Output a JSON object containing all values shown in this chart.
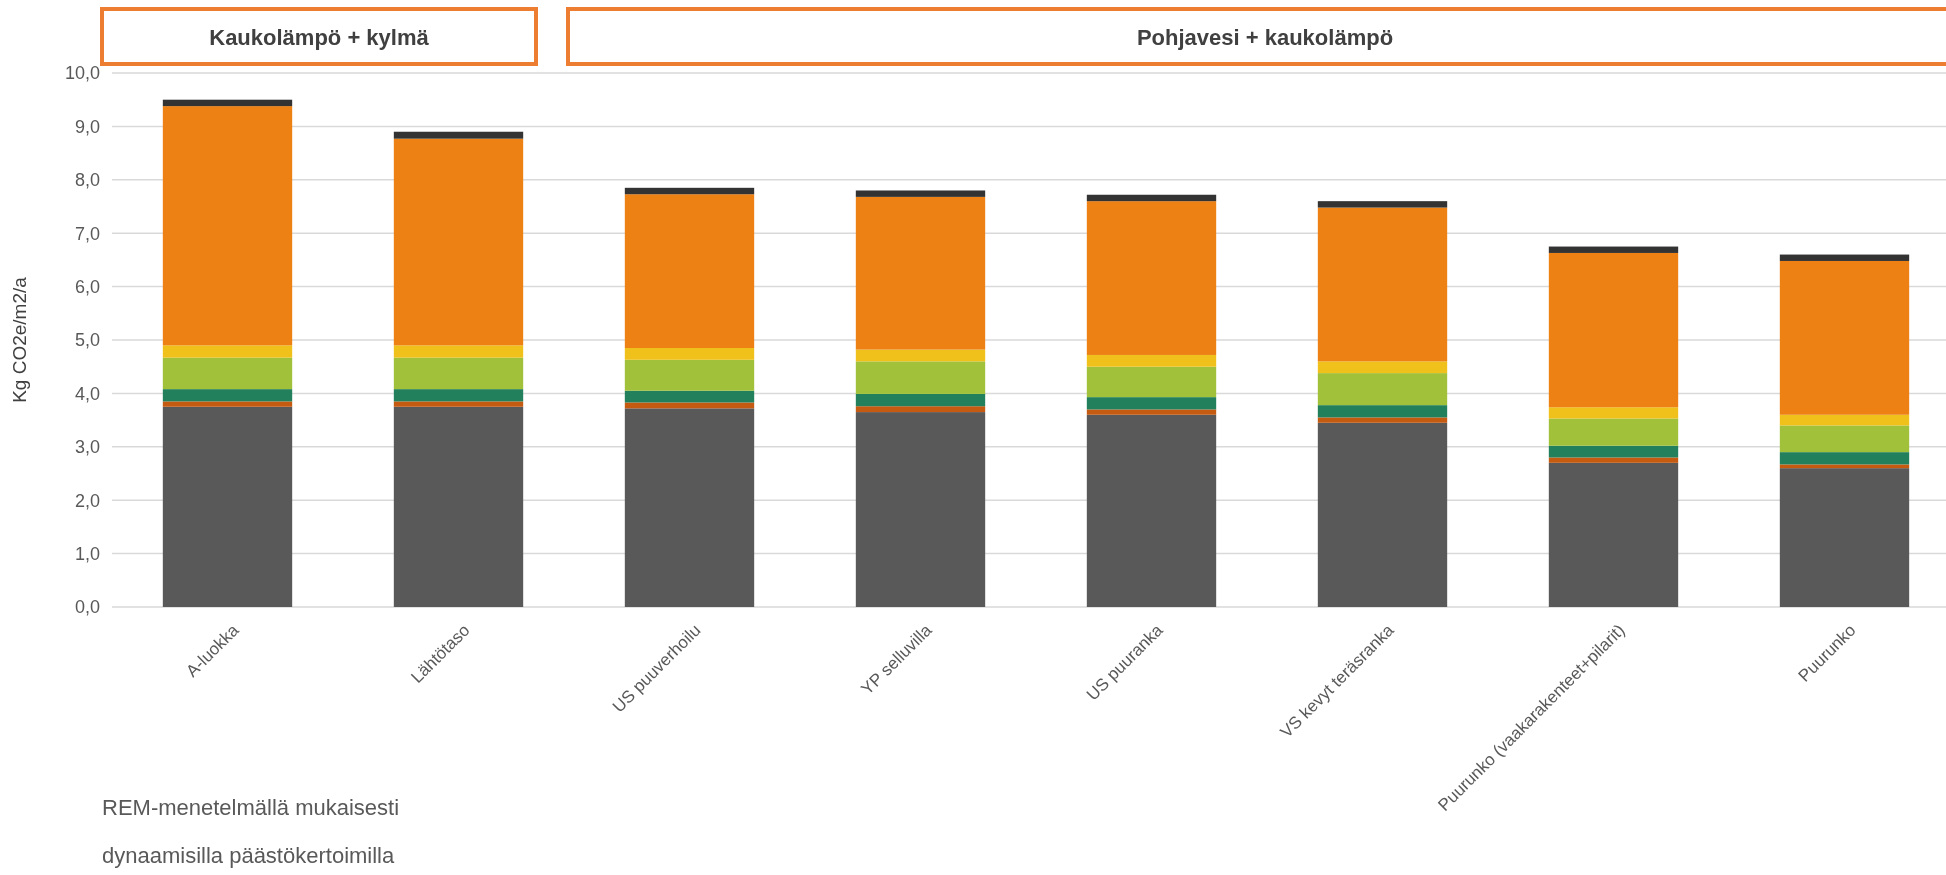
{
  "chart_data": {
    "type": "bar",
    "stacked": true,
    "ylabel": "Kg CO2e/m2/a",
    "categories": [
      "A-luokka",
      "Lähtötaso",
      "US puuverhoilu",
      "YP selluvilla",
      "US puuranka",
      "VS kevyt teräsranka",
      "Puurunko (vaakarakenteet+pilarit)",
      "Puurunko"
    ],
    "series": [
      {
        "color": "#595959",
        "values": [
          3.75,
          3.75,
          3.72,
          3.65,
          3.6,
          3.45,
          2.7,
          2.6
        ]
      },
      {
        "color": "#c55a11",
        "values": [
          0.1,
          0.1,
          0.11,
          0.11,
          0.1,
          0.1,
          0.1,
          0.07
        ]
      },
      {
        "color": "#23805d",
        "values": [
          0.23,
          0.23,
          0.22,
          0.23,
          0.23,
          0.23,
          0.22,
          0.23
        ]
      },
      {
        "color": "#a2c13a",
        "values": [
          0.59,
          0.59,
          0.58,
          0.61,
          0.57,
          0.6,
          0.51,
          0.5
        ]
      },
      {
        "color": "#efc11a",
        "values": [
          0.23,
          0.23,
          0.22,
          0.22,
          0.22,
          0.22,
          0.21,
          0.2
        ]
      },
      {
        "color": "#ed8114",
        "values": [
          4.48,
          3.87,
          2.88,
          2.86,
          2.88,
          2.88,
          2.89,
          2.88
        ]
      },
      {
        "color": "#333333",
        "values": [
          0.12,
          0.13,
          0.12,
          0.12,
          0.12,
          0.12,
          0.12,
          0.12
        ]
      }
    ],
    "ylim": [
      0,
      10
    ],
    "yticks": [
      {
        "value": 0,
        "label": "0,0"
      },
      {
        "value": 1,
        "label": "1,0"
      },
      {
        "value": 2,
        "label": "2,0"
      },
      {
        "value": 3,
        "label": "3,0"
      },
      {
        "value": 4,
        "label": "4,0"
      },
      {
        "value": 5,
        "label": "5,0"
      },
      {
        "value": 6,
        "label": "6,0"
      },
      {
        "value": 7,
        "label": "7,0"
      },
      {
        "value": 8,
        "label": "8,0"
      },
      {
        "value": 9,
        "label": "9,0"
      },
      {
        "value": 10,
        "label": "10,0"
      }
    ],
    "grid": "y",
    "annotations": [
      "Kaukolämpö + kylmä",
      "Pohjavesi + kaukolämpö",
      "REM-menetelmällä mukaisesti",
      "dynaamisilla päästökertoimilla"
    ]
  }
}
